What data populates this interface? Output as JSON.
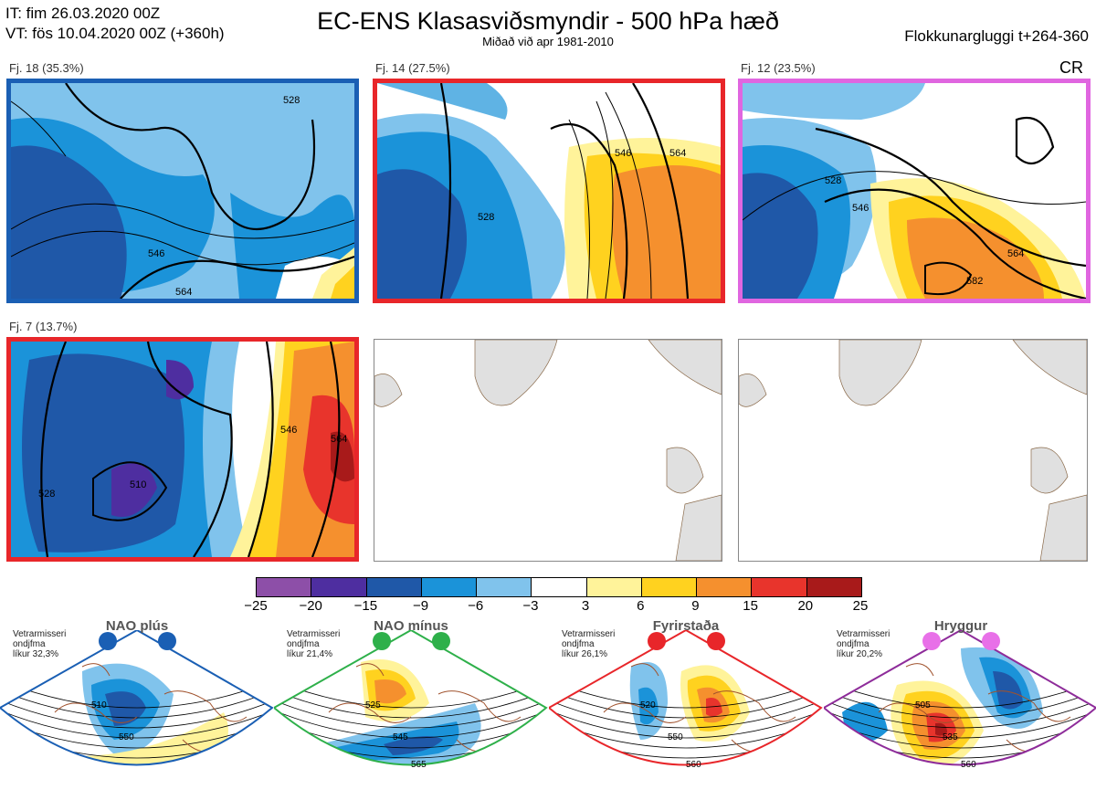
{
  "header": {
    "it_line": "IT: fim 26.03.2020 00Z",
    "vt_line": "VT: fös 10.04.2020 00Z  (+360h)",
    "title": "EC-ENS Klasasviðsmyndir - 500 hPa hæð",
    "subtitle": "Miðað við apr 1981-2010",
    "window": "Flokkunargluggi t+264-360",
    "cr": "CR"
  },
  "clusters": [
    {
      "label": "Fj. 18 (35.3%)",
      "border": "#1a5fb4",
      "contours": [
        "528",
        "546",
        "564"
      ]
    },
    {
      "label": "Fj. 14 (27.5%)",
      "border": "#e8262a",
      "contours": [
        "528",
        "546",
        "564"
      ]
    },
    {
      "label": "Fj. 12 (23.5%)",
      "border": "#e066e0",
      "contours": [
        "528",
        "546",
        "564",
        "582"
      ]
    },
    {
      "label": "Fj. 7 (13.7%)",
      "border": "#e8262a",
      "contours": [
        "510",
        "528",
        "546",
        "564"
      ]
    }
  ],
  "colorbar": {
    "ticks": [
      "−25",
      "−20",
      "−15",
      "−9",
      "−6",
      "−3",
      "3",
      "6",
      "9",
      "15",
      "20",
      "25"
    ],
    "colors": [
      "#8d4fa8",
      "#4e2ea0",
      "#1f58a8",
      "#1b93d9",
      "#80c3ec",
      "#ffffff",
      "#fff39a",
      "#ffd21f",
      "#f5902e",
      "#e8342c",
      "#a81a1a"
    ]
  },
  "regimes": [
    {
      "name": "NAO plús",
      "stat": [
        "Vetrarmisseri",
        "ondjfma",
        "líkur 32,3%"
      ],
      "edge": "#1a5fb4",
      "dot": "#1a5fb4",
      "contours": [
        "510",
        "550"
      ]
    },
    {
      "name": "NAO mínus",
      "stat": [
        "Vetrarmisseri",
        "ondjfma",
        "líkur 21,4%"
      ],
      "edge": "#2eb04a",
      "dot": "#2eb04a",
      "contours": [
        "525",
        "545",
        "565"
      ]
    },
    {
      "name": "Fyrirstaða",
      "stat": [
        "Vetrarmisseri",
        "ondjfma",
        "líkur 26,1%"
      ],
      "edge": "#e8262a",
      "dot": "#e8262a",
      "contours": [
        "520",
        "550",
        "560"
      ]
    },
    {
      "name": "Hryggur",
      "stat": [
        "Vetrarmisseri",
        "ondjfma",
        "líkur 20,2%"
      ],
      "edge": "#8e2c9a",
      "dot": "#e870e8",
      "contours": [
        "505",
        "535",
        "560"
      ]
    }
  ]
}
